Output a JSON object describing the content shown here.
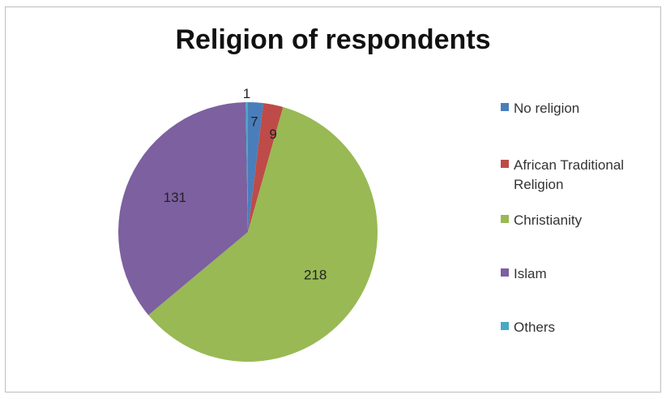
{
  "chart_data": {
    "type": "pie",
    "title": "Religion of respondents",
    "categories": [
      "No religion",
      "African Traditional Religion",
      "Christianity",
      "Islam",
      "Others"
    ],
    "values": [
      7,
      9,
      218,
      131,
      1
    ],
    "colors": [
      "#4a7ebb",
      "#be4b48",
      "#98b954",
      "#7d60a0",
      "#46aac5"
    ],
    "data_labels": [
      "7",
      "9",
      "218",
      "131",
      "1"
    ],
    "legend_placement": "right"
  }
}
